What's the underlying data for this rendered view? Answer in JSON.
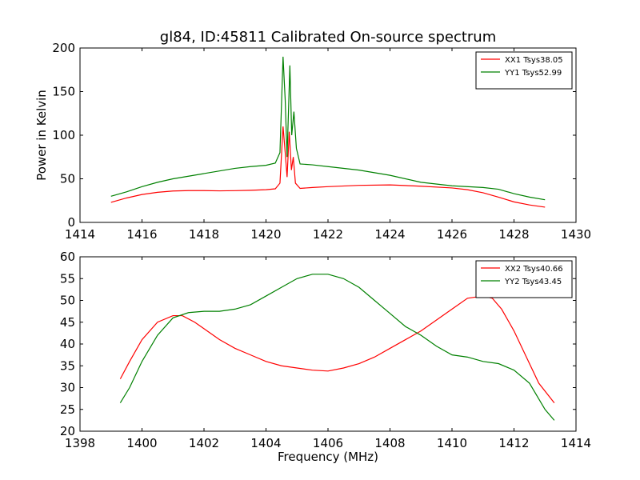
{
  "figure": {
    "title": "gl84, ID:45811 Calibrated On-source spectrum"
  },
  "chart_data": [
    {
      "type": "line",
      "title": "gl84, ID:45811 Calibrated On-source spectrum",
      "xlabel": "",
      "ylabel": "Power in Kelvin",
      "xlim": [
        1414,
        1430
      ],
      "ylim": [
        0,
        200
      ],
      "xticks": [
        1414,
        1416,
        1418,
        1420,
        1422,
        1424,
        1426,
        1428,
        1430
      ],
      "yticks": [
        0,
        50,
        100,
        150,
        200
      ],
      "grid": false,
      "legend_position": "top-right",
      "series": [
        {
          "name": "XX1 Tsys38.05",
          "color": "#ff0000",
          "points": [
            [
              1415.0,
              23
            ],
            [
              1415.5,
              28
            ],
            [
              1416.0,
              32
            ],
            [
              1416.5,
              34.5
            ],
            [
              1417.0,
              36
            ],
            [
              1417.5,
              36.5
            ],
            [
              1418.0,
              36.5
            ],
            [
              1418.5,
              36.2
            ],
            [
              1419.0,
              36.4
            ],
            [
              1419.5,
              36.8
            ],
            [
              1420.0,
              37.5
            ],
            [
              1420.3,
              38.5
            ],
            [
              1420.45,
              45
            ],
            [
              1420.55,
              110
            ],
            [
              1420.62,
              80
            ],
            [
              1420.68,
              52
            ],
            [
              1420.75,
              104
            ],
            [
              1420.82,
              60
            ],
            [
              1420.88,
              75
            ],
            [
              1420.95,
              45
            ],
            [
              1421.1,
              39
            ],
            [
              1421.5,
              40
            ],
            [
              1422.0,
              41
            ],
            [
              1423.0,
              42.5
            ],
            [
              1424.0,
              43
            ],
            [
              1425.0,
              41.5
            ],
            [
              1426.0,
              39.5
            ],
            [
              1426.5,
              37.5
            ],
            [
              1427.0,
              34
            ],
            [
              1427.5,
              29
            ],
            [
              1428.0,
              23.5
            ],
            [
              1428.5,
              20
            ],
            [
              1429.0,
              17.5
            ]
          ]
        },
        {
          "name": "YY1 Tsys52.99",
          "color": "#008000",
          "points": [
            [
              1415.0,
              30
            ],
            [
              1415.5,
              35
            ],
            [
              1416.0,
              41
            ],
            [
              1416.5,
              46
            ],
            [
              1417.0,
              50
            ],
            [
              1417.5,
              53
            ],
            [
              1418.0,
              56
            ],
            [
              1418.5,
              59
            ],
            [
              1419.0,
              62
            ],
            [
              1419.5,
              64
            ],
            [
              1420.0,
              65.5
            ],
            [
              1420.3,
              68
            ],
            [
              1420.45,
              80
            ],
            [
              1420.55,
              190
            ],
            [
              1420.62,
              140
            ],
            [
              1420.68,
              75
            ],
            [
              1420.77,
              180
            ],
            [
              1420.83,
              100
            ],
            [
              1420.9,
              127
            ],
            [
              1420.98,
              85
            ],
            [
              1421.1,
              67
            ],
            [
              1421.5,
              66
            ],
            [
              1422.0,
              64
            ],
            [
              1423.0,
              60
            ],
            [
              1424.0,
              54
            ],
            [
              1425.0,
              46
            ],
            [
              1426.0,
              42
            ],
            [
              1427.0,
              40
            ],
            [
              1427.5,
              38
            ],
            [
              1428.0,
              33
            ],
            [
              1428.5,
              29
            ],
            [
              1429.0,
              26
            ]
          ]
        }
      ]
    },
    {
      "type": "line",
      "title": "",
      "xlabel": "Frequency (MHz)",
      "ylabel": "",
      "xlim": [
        1398,
        1414
      ],
      "ylim": [
        20,
        60
      ],
      "xticks": [
        1398,
        1400,
        1402,
        1404,
        1406,
        1408,
        1410,
        1412,
        1414
      ],
      "yticks": [
        20,
        25,
        30,
        35,
        40,
        45,
        50,
        55,
        60
      ],
      "grid": false,
      "legend_position": "top-right",
      "series": [
        {
          "name": "XX2 Tsys40.66",
          "color": "#ff0000",
          "points": [
            [
              1399.3,
              32
            ],
            [
              1399.6,
              36
            ],
            [
              1400.0,
              41
            ],
            [
              1400.5,
              45
            ],
            [
              1401.0,
              46.5
            ],
            [
              1401.3,
              46.5
            ],
            [
              1401.7,
              45
            ],
            [
              1402.0,
              43.5
            ],
            [
              1402.5,
              41
            ],
            [
              1403.0,
              39
            ],
            [
              1403.5,
              37.5
            ],
            [
              1404.0,
              36
            ],
            [
              1404.5,
              35
            ],
            [
              1405.0,
              34.5
            ],
            [
              1405.5,
              34
            ],
            [
              1406.0,
              33.8
            ],
            [
              1406.5,
              34.5
            ],
            [
              1407.0,
              35.5
            ],
            [
              1407.5,
              37
            ],
            [
              1408.0,
              39
            ],
            [
              1408.5,
              41
            ],
            [
              1409.0,
              43
            ],
            [
              1409.5,
              45.5
            ],
            [
              1410.0,
              48
            ],
            [
              1410.5,
              50.5
            ],
            [
              1411.0,
              51
            ],
            [
              1411.3,
              50.5
            ],
            [
              1411.6,
              48
            ],
            [
              1412.0,
              43
            ],
            [
              1412.4,
              37
            ],
            [
              1412.8,
              31
            ],
            [
              1413.3,
              26.5
            ]
          ]
        },
        {
          "name": "YY2 Tsys43.45",
          "color": "#008000",
          "points": [
            [
              1399.3,
              26.5
            ],
            [
              1399.6,
              30
            ],
            [
              1400.0,
              36
            ],
            [
              1400.5,
              42
            ],
            [
              1401.0,
              46
            ],
            [
              1401.5,
              47.2
            ],
            [
              1402.0,
              47.5
            ],
            [
              1402.5,
              47.5
            ],
            [
              1403.0,
              48
            ],
            [
              1403.5,
              49
            ],
            [
              1404.0,
              51
            ],
            [
              1404.5,
              53
            ],
            [
              1405.0,
              55
            ],
            [
              1405.5,
              56
            ],
            [
              1406.0,
              56
            ],
            [
              1406.5,
              55
            ],
            [
              1407.0,
              53
            ],
            [
              1407.5,
              50
            ],
            [
              1408.0,
              47
            ],
            [
              1408.5,
              44
            ],
            [
              1409.0,
              42
            ],
            [
              1409.5,
              39.5
            ],
            [
              1410.0,
              37.5
            ],
            [
              1410.5,
              37
            ],
            [
              1411.0,
              36
            ],
            [
              1411.5,
              35.5
            ],
            [
              1412.0,
              34
            ],
            [
              1412.5,
              31
            ],
            [
              1413.0,
              25
            ],
            [
              1413.3,
              22.5
            ]
          ]
        }
      ]
    }
  ]
}
